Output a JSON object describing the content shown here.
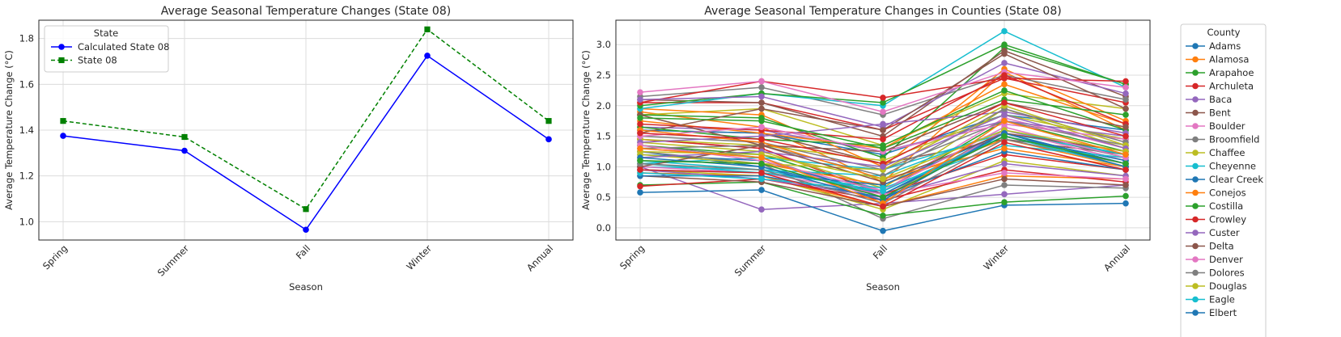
{
  "chart_data": [
    {
      "type": "line",
      "title": "Average Seasonal Temperature Changes (State 08)",
      "xlabel": "Season",
      "ylabel": "Average Temperature Change (°C)",
      "categories": [
        "Spring",
        "Summer",
        "Fall",
        "Winter",
        "Annual"
      ],
      "ylim": [
        0.92,
        1.88
      ],
      "yticks": [
        1.0,
        1.2,
        1.4,
        1.6,
        1.8
      ],
      "grid": true,
      "legend": {
        "title": "State",
        "placement": "upper-left"
      },
      "series": [
        {
          "name": "Calculated State 08",
          "color": "#0000ff",
          "marker": "circle",
          "dash": "solid",
          "values": [
            1.375,
            1.31,
            0.965,
            1.725,
            1.36
          ]
        },
        {
          "name": "State 08",
          "color": "#008000",
          "marker": "square",
          "dash": "dashed",
          "values": [
            1.44,
            1.37,
            1.055,
            1.84,
            1.44
          ]
        }
      ]
    },
    {
      "type": "line",
      "title": "Average Seasonal Temperature Changes in Counties (State 08)",
      "xlabel": "Season",
      "ylabel": "Average Temperature Change (°C)",
      "categories": [
        "Spring",
        "Summer",
        "Fall",
        "Winter",
        "Annual"
      ],
      "ylim": [
        -0.2,
        3.4
      ],
      "yticks": [
        0.0,
        0.5,
        1.0,
        1.5,
        2.0,
        2.5,
        3.0
      ],
      "grid": true,
      "legend": {
        "title": "County",
        "placement": "outside-right"
      },
      "series": [
        {
          "name": "Adams",
          "color": "#1f77b4",
          "values": [
            1.25,
            1.0,
            0.55,
            1.55,
            1.05
          ]
        },
        {
          "name": "Alamosa",
          "color": "#ff7f0e",
          "values": [
            1.9,
            1.65,
            0.75,
            2.55,
            1.6
          ]
        },
        {
          "name": "Arapahoe",
          "color": "#2ca02c",
          "values": [
            1.35,
            1.2,
            0.6,
            1.75,
            1.25
          ]
        },
        {
          "name": "Archuleta",
          "color": "#d62728",
          "values": [
            2.05,
            2.05,
            1.6,
            2.45,
            2.05
          ]
        },
        {
          "name": "Baca",
          "color": "#9467bd",
          "values": [
            1.0,
            0.3,
            0.4,
            0.55,
            0.7
          ]
        },
        {
          "name": "Bent",
          "color": "#8c564b",
          "values": [
            1.6,
            1.55,
            1.05,
            1.45,
            1.2
          ]
        },
        {
          "name": "Boulder",
          "color": "#e377c2",
          "values": [
            1.45,
            1.3,
            0.6,
            1.8,
            1.3
          ]
        },
        {
          "name": "Broomfield",
          "color": "#7f7f7f",
          "values": [
            1.35,
            1.15,
            0.5,
            1.6,
            1.15
          ]
        },
        {
          "name": "Chaffee",
          "color": "#bcbd22",
          "values": [
            1.85,
            1.95,
            1.35,
            2.2,
            1.95
          ]
        },
        {
          "name": "Cheyenne",
          "color": "#17becf",
          "values": [
            1.05,
            1.15,
            0.95,
            1.55,
            1.2
          ]
        },
        {
          "name": "Clear Creek",
          "color": "#1f77b4",
          "values": [
            1.6,
            1.55,
            1.2,
            1.85,
            1.6
          ]
        },
        {
          "name": "Conejos",
          "color": "#ff7f0e",
          "values": [
            1.95,
            1.85,
            1.0,
            2.6,
            1.75
          ]
        },
        {
          "name": "Costilla",
          "color": "#2ca02c",
          "values": [
            1.85,
            1.8,
            1.15,
            2.95,
            2.35
          ]
        },
        {
          "name": "Crowley",
          "color": "#d62728",
          "values": [
            1.45,
            1.3,
            0.55,
            1.2,
            0.95
          ]
        },
        {
          "name": "Custer",
          "color": "#9467bd",
          "values": [
            1.65,
            1.6,
            1.25,
            1.75,
            1.5
          ]
        },
        {
          "name": "Delta",
          "color": "#8c564b",
          "values": [
            2.1,
            2.05,
            1.5,
            2.9,
            2.15
          ]
        },
        {
          "name": "Denver",
          "color": "#e377c2",
          "values": [
            1.3,
            1.15,
            0.45,
            1.6,
            1.1
          ]
        },
        {
          "name": "Dolores",
          "color": "#7f7f7f",
          "values": [
            2.15,
            2.3,
            1.85,
            2.5,
            2.1
          ]
        },
        {
          "name": "Douglas",
          "color": "#bcbd22",
          "values": [
            1.4,
            1.25,
            0.65,
            1.95,
            1.3
          ]
        },
        {
          "name": "Eagle",
          "color": "#17becf",
          "values": [
            1.95,
            2.2,
            2.0,
            3.22,
            2.3
          ]
        },
        {
          "name": "Elbert",
          "color": "#1f77b4",
          "values": [
            1.2,
            1.1,
            0.55,
            1.5,
            1.1
          ]
        },
        {
          "name": "",
          "color": "#ff7f0e",
          "values": [
            1.1,
            1.05,
            0.7,
            1.45,
            1.0
          ]
        },
        {
          "name": "",
          "color": "#2ca02c",
          "values": [
            2.0,
            2.2,
            2.05,
            3.0,
            2.35
          ]
        },
        {
          "name": "",
          "color": "#d62728",
          "values": [
            2.05,
            2.4,
            2.13,
            2.45,
            2.4
          ]
        },
        {
          "name": "",
          "color": "#9467bd",
          "values": [
            2.1,
            2.15,
            1.65,
            2.7,
            2.2
          ]
        },
        {
          "name": "",
          "color": "#8c564b",
          "values": [
            1.55,
            1.95,
            1.6,
            2.85,
            1.95
          ]
        },
        {
          "name": "",
          "color": "#e377c2",
          "values": [
            2.22,
            2.4,
            1.9,
            2.55,
            2.3
          ]
        },
        {
          "name": "",
          "color": "#7f7f7f",
          "values": [
            1.25,
            1.05,
            0.15,
            0.7,
            0.65
          ]
        },
        {
          "name": "",
          "color": "#bcbd22",
          "values": [
            0.95,
            0.85,
            0.3,
            1.1,
            0.85
          ]
        },
        {
          "name": "",
          "color": "#17becf",
          "values": [
            1.0,
            0.95,
            0.6,
            1.5,
            1.05
          ]
        },
        {
          "name": "",
          "color": "#1f77b4",
          "values": [
            0.58,
            0.62,
            -0.05,
            0.37,
            0.4
          ]
        },
        {
          "name": "",
          "color": "#ff7f0e",
          "values": [
            0.9,
            0.85,
            0.35,
            0.85,
            0.8
          ]
        },
        {
          "name": "",
          "color": "#2ca02c",
          "values": [
            0.7,
            0.75,
            0.2,
            0.42,
            0.52
          ]
        },
        {
          "name": "",
          "color": "#d62728",
          "values": [
            0.68,
            0.8,
            0.45,
            0.95,
            0.75
          ]
        },
        {
          "name": "",
          "color": "#9467bd",
          "values": [
            0.95,
            0.8,
            0.5,
            1.05,
            0.85
          ]
        },
        {
          "name": "",
          "color": "#8c564b",
          "values": [
            0.85,
            0.75,
            0.35,
            0.8,
            0.7
          ]
        },
        {
          "name": "",
          "color": "#e377c2",
          "values": [
            1.0,
            0.9,
            0.55,
            0.9,
            0.8
          ]
        },
        {
          "name": "",
          "color": "#7f7f7f",
          "values": [
            1.5,
            1.4,
            0.95,
            1.75,
            1.35
          ]
        },
        {
          "name": "",
          "color": "#bcbd22",
          "values": [
            1.45,
            1.35,
            1.1,
            1.85,
            1.45
          ]
        },
        {
          "name": "",
          "color": "#17becf",
          "values": [
            1.1,
            0.95,
            0.85,
            1.6,
            1.2
          ]
        },
        {
          "name": "",
          "color": "#1f77b4",
          "values": [
            0.95,
            0.9,
            0.7,
            1.55,
            1.05
          ]
        },
        {
          "name": "",
          "color": "#ff7f0e",
          "values": [
            1.75,
            1.55,
            1.3,
            2.35,
            1.7
          ]
        },
        {
          "name": "",
          "color": "#2ca02c",
          "values": [
            1.65,
            1.45,
            1.35,
            2.25,
            1.6
          ]
        },
        {
          "name": "",
          "color": "#d62728",
          "values": [
            1.7,
            1.6,
            1.45,
            2.5,
            1.7
          ]
        },
        {
          "name": "",
          "color": "#9467bd",
          "values": [
            1.4,
            1.5,
            1.7,
            1.9,
            1.55
          ]
        },
        {
          "name": "",
          "color": "#8c564b",
          "values": [
            1.85,
            1.35,
            1.25,
            2.05,
            1.65
          ]
        },
        {
          "name": "",
          "color": "#e377c2",
          "values": [
            1.5,
            1.65,
            1.25,
            1.7,
            1.45
          ]
        },
        {
          "name": "",
          "color": "#7f7f7f",
          "values": [
            1.3,
            1.35,
            0.85,
            1.95,
            1.4
          ]
        },
        {
          "name": "",
          "color": "#bcbd22",
          "values": [
            1.2,
            1.05,
            0.95,
            2.0,
            1.35
          ]
        },
        {
          "name": "",
          "color": "#17becf",
          "values": [
            1.05,
            0.9,
            0.65,
            1.35,
            1.15
          ]
        },
        {
          "name": "",
          "color": "#1f77b4",
          "values": [
            0.85,
            0.85,
            0.5,
            1.25,
            0.95
          ]
        },
        {
          "name": "",
          "color": "#ff7f0e",
          "values": [
            1.6,
            1.4,
            0.8,
            1.3,
            1.0
          ]
        },
        {
          "name": "",
          "color": "#2ca02c",
          "values": [
            1.8,
            1.75,
            1.3,
            2.1,
            1.85
          ]
        },
        {
          "name": "",
          "color": "#d62728",
          "values": [
            1.55,
            1.45,
            1.05,
            2.05,
            1.5
          ]
        },
        {
          "name": "",
          "color": "#9467bd",
          "values": [
            1.15,
            1.25,
            1.0,
            1.85,
            1.3
          ]
        },
        {
          "name": "",
          "color": "#8c564b",
          "values": [
            1.0,
            1.35,
            0.75,
            1.55,
            1.25
          ]
        },
        {
          "name": "",
          "color": "#e377c2",
          "values": [
            1.35,
            1.1,
            0.6,
            1.65,
            1.15
          ]
        },
        {
          "name": "",
          "color": "#7f7f7f",
          "values": [
            1.05,
            0.95,
            0.4,
            1.45,
            1.05
          ]
        },
        {
          "name": "",
          "color": "#bcbd22",
          "values": [
            1.25,
            1.2,
            0.8,
            1.6,
            1.25
          ]
        },
        {
          "name": "",
          "color": "#17becf",
          "values": [
            0.9,
            0.8,
            0.6,
            1.5,
            1.0
          ]
        },
        {
          "name": "",
          "color": "#1f77b4",
          "values": [
            1.15,
            1.0,
            0.45,
            1.55,
            1.0
          ]
        },
        {
          "name": "",
          "color": "#ff7f0e",
          "values": [
            1.3,
            1.15,
            0.4,
            1.75,
            1.2
          ]
        },
        {
          "name": "",
          "color": "#2ca02c",
          "values": [
            1.1,
            1.05,
            0.5,
            1.5,
            1.05
          ]
        },
        {
          "name": "",
          "color": "#d62728",
          "values": [
            0.95,
            0.9,
            0.35,
            1.4,
            0.95
          ]
        }
      ]
    }
  ]
}
